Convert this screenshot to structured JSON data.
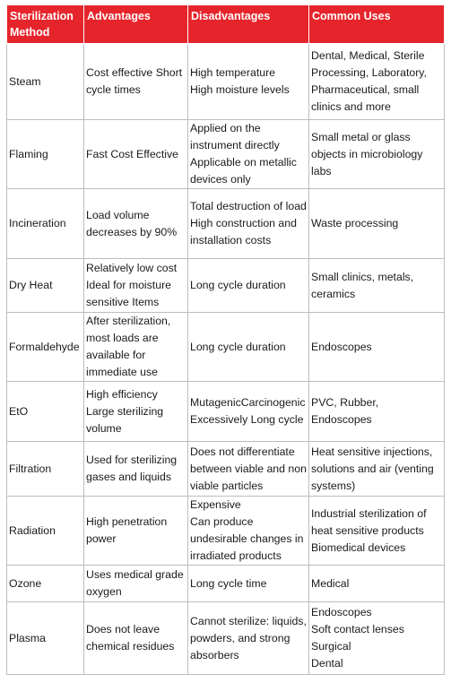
{
  "headers": [
    "Sterilization Method",
    "Advantages",
    "Disadvantages",
    "Common Uses"
  ],
  "rows": [
    {
      "method": "Steam",
      "advantages": [
        "Cost effective Short cycle times"
      ],
      "disadvantages": [
        "High temperature",
        "High moisture levels"
      ],
      "uses": [
        "Dental, Medical, Sterile Processing, Laboratory, Pharmaceutical, small clinics and more"
      ]
    },
    {
      "method": "Flaming",
      "advantages": [
        "Fast Cost Effective"
      ],
      "disadvantages": [
        "Applied on the instrument directly",
        "Applicable on metallic devices only"
      ],
      "uses": [
        "Small metal or glass objects in microbiology labs"
      ]
    },
    {
      "method": "Incineration",
      "advantages": [
        "Load volume decreases by 90%"
      ],
      "disadvantages": [
        "Total destruction of load",
        "High construction and installation costs"
      ],
      "uses": [
        "Waste processing"
      ]
    },
    {
      "method": "Dry Heat",
      "advantages": [
        "Relatively low cost",
        "Ideal for moisture sensitive Items"
      ],
      "disadvantages": [
        "Long cycle duration"
      ],
      "uses": [
        "Small clinics, metals, ceramics"
      ]
    },
    {
      "method": "Formaldehyde",
      "advantages": [
        "After sterilization, most loads are available for immediate use"
      ],
      "disadvantages": [
        "Long cycle duration"
      ],
      "uses": [
        "Endoscopes"
      ]
    },
    {
      "method": "EtO",
      "advantages": [
        "High efficiency",
        "Large sterilizing volume"
      ],
      "disadvantages": [
        "MutagenicCarcinogenic",
        "Excessively Long cycle"
      ],
      "uses": [
        "PVC, Rubber, Endoscopes"
      ]
    },
    {
      "method": "Filtration",
      "advantages": [
        "Used for sterilizing gases and liquids"
      ],
      "disadvantages": [
        "Does not differentiate between viable and non viable particles"
      ],
      "uses": [
        "Heat sensitive injections, solutions and air (venting systems)"
      ]
    },
    {
      "method": "Radiation",
      "advantages": [
        "High penetration power"
      ],
      "disadvantages": [
        "Expensive",
        "Can produce undesirable changes in irradiated products"
      ],
      "uses": [
        "Industrial sterilization of heat sensitive products",
        "Biomedical devices"
      ]
    },
    {
      "method": "Ozone",
      "advantages": [
        "Uses medical grade oxygen"
      ],
      "disadvantages": [
        "Long cycle time"
      ],
      "uses": [
        "Medical"
      ]
    },
    {
      "method": "Plasma",
      "advantages": [
        "Does not leave chemical residues"
      ],
      "disadvantages": [
        "Cannot sterilize: liquids, powders, and strong absorbers"
      ],
      "uses": [
        "Endoscopes",
        "Soft contact lenses",
        "Surgical",
        "Dental"
      ]
    }
  ],
  "colors": {
    "header_bg": "#e6242b",
    "header_text": "#ffffff",
    "border": "#bdbdbd"
  }
}
